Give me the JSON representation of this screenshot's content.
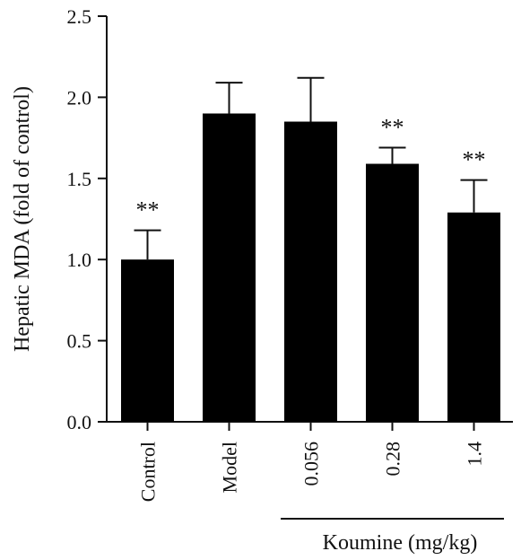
{
  "chart_data": {
    "type": "bar",
    "ylabel": "Hepatic MDA (fold of control)",
    "ylim": [
      0,
      2.5
    ],
    "yticks": [
      "0.0",
      "0.5",
      "1.0",
      "1.5",
      "2.0",
      "2.5"
    ],
    "categories": [
      "Control",
      "Model",
      "0.056",
      "0.28",
      "1.4"
    ],
    "values": [
      1.0,
      1.9,
      1.85,
      1.59,
      1.29
    ],
    "errors": [
      0.18,
      0.19,
      0.27,
      0.1,
      0.2
    ],
    "significance": [
      "**",
      "",
      "",
      "**",
      "**"
    ],
    "group_label": "Koumine (mg/kg)",
    "grid": false,
    "bar_color": "#000000"
  }
}
